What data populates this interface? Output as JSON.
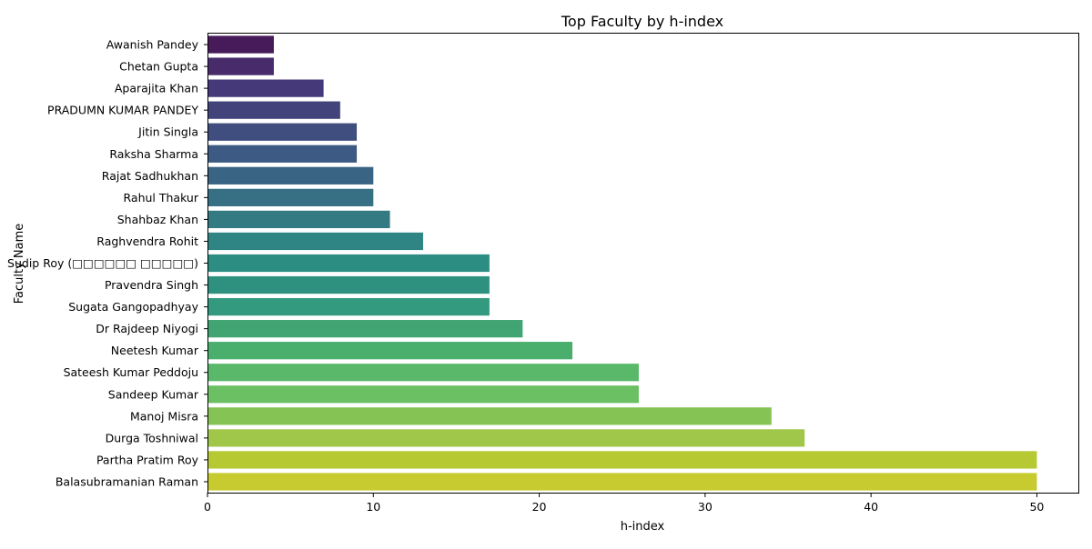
{
  "chart_data": {
    "type": "bar",
    "orientation": "horizontal",
    "title": "Top Faculty by h-index",
    "xlabel": "h-index",
    "ylabel": "Faculty Name",
    "xlim": [
      0,
      52.5
    ],
    "xticks": [
      0,
      10,
      20,
      30,
      40,
      50
    ],
    "grid": false,
    "palette": "viridis",
    "categories": [
      "Awanish Pandey",
      "Chetan Gupta",
      "Aparajita Khan",
      "PRADUMN KUMAR PANDEY",
      "Jitin Singla",
      "Raksha Sharma",
      "Rajat Sadhukhan",
      "Rahul Thakur",
      "Shahbaz Khan",
      "Raghvendra Rohit",
      "Sudip Roy (□□□□□□ □□□□□)",
      "Pravendra Singh",
      "Sugata Gangopadhyay",
      "Dr Rajdeep Niyogi",
      "Neetesh Kumar",
      "Sateesh Kumar Peddoju",
      "Sandeep Kumar",
      "Manoj Misra",
      "Durga Toshniwal",
      "Partha Pratim Roy",
      "Balasubramanian Raman"
    ],
    "values": [
      4,
      4,
      7,
      8,
      9,
      9,
      10,
      10,
      11,
      13,
      17,
      17,
      17,
      19,
      22,
      26,
      26,
      34,
      36,
      50,
      50
    ],
    "colors": [
      "#471a5a",
      "#472b6a",
      "#46397a",
      "#43437b",
      "#3f4e7f",
      "#3c5a83",
      "#3a6483",
      "#376f84",
      "#347a83",
      "#2f8584",
      "#2c8e82",
      "#2e9180",
      "#339a7f",
      "#40a573",
      "#4aae6d",
      "#5ab86b",
      "#6cc064",
      "#85c354",
      "#a1c74a",
      "#b6c932",
      "#c7cb2f"
    ]
  }
}
